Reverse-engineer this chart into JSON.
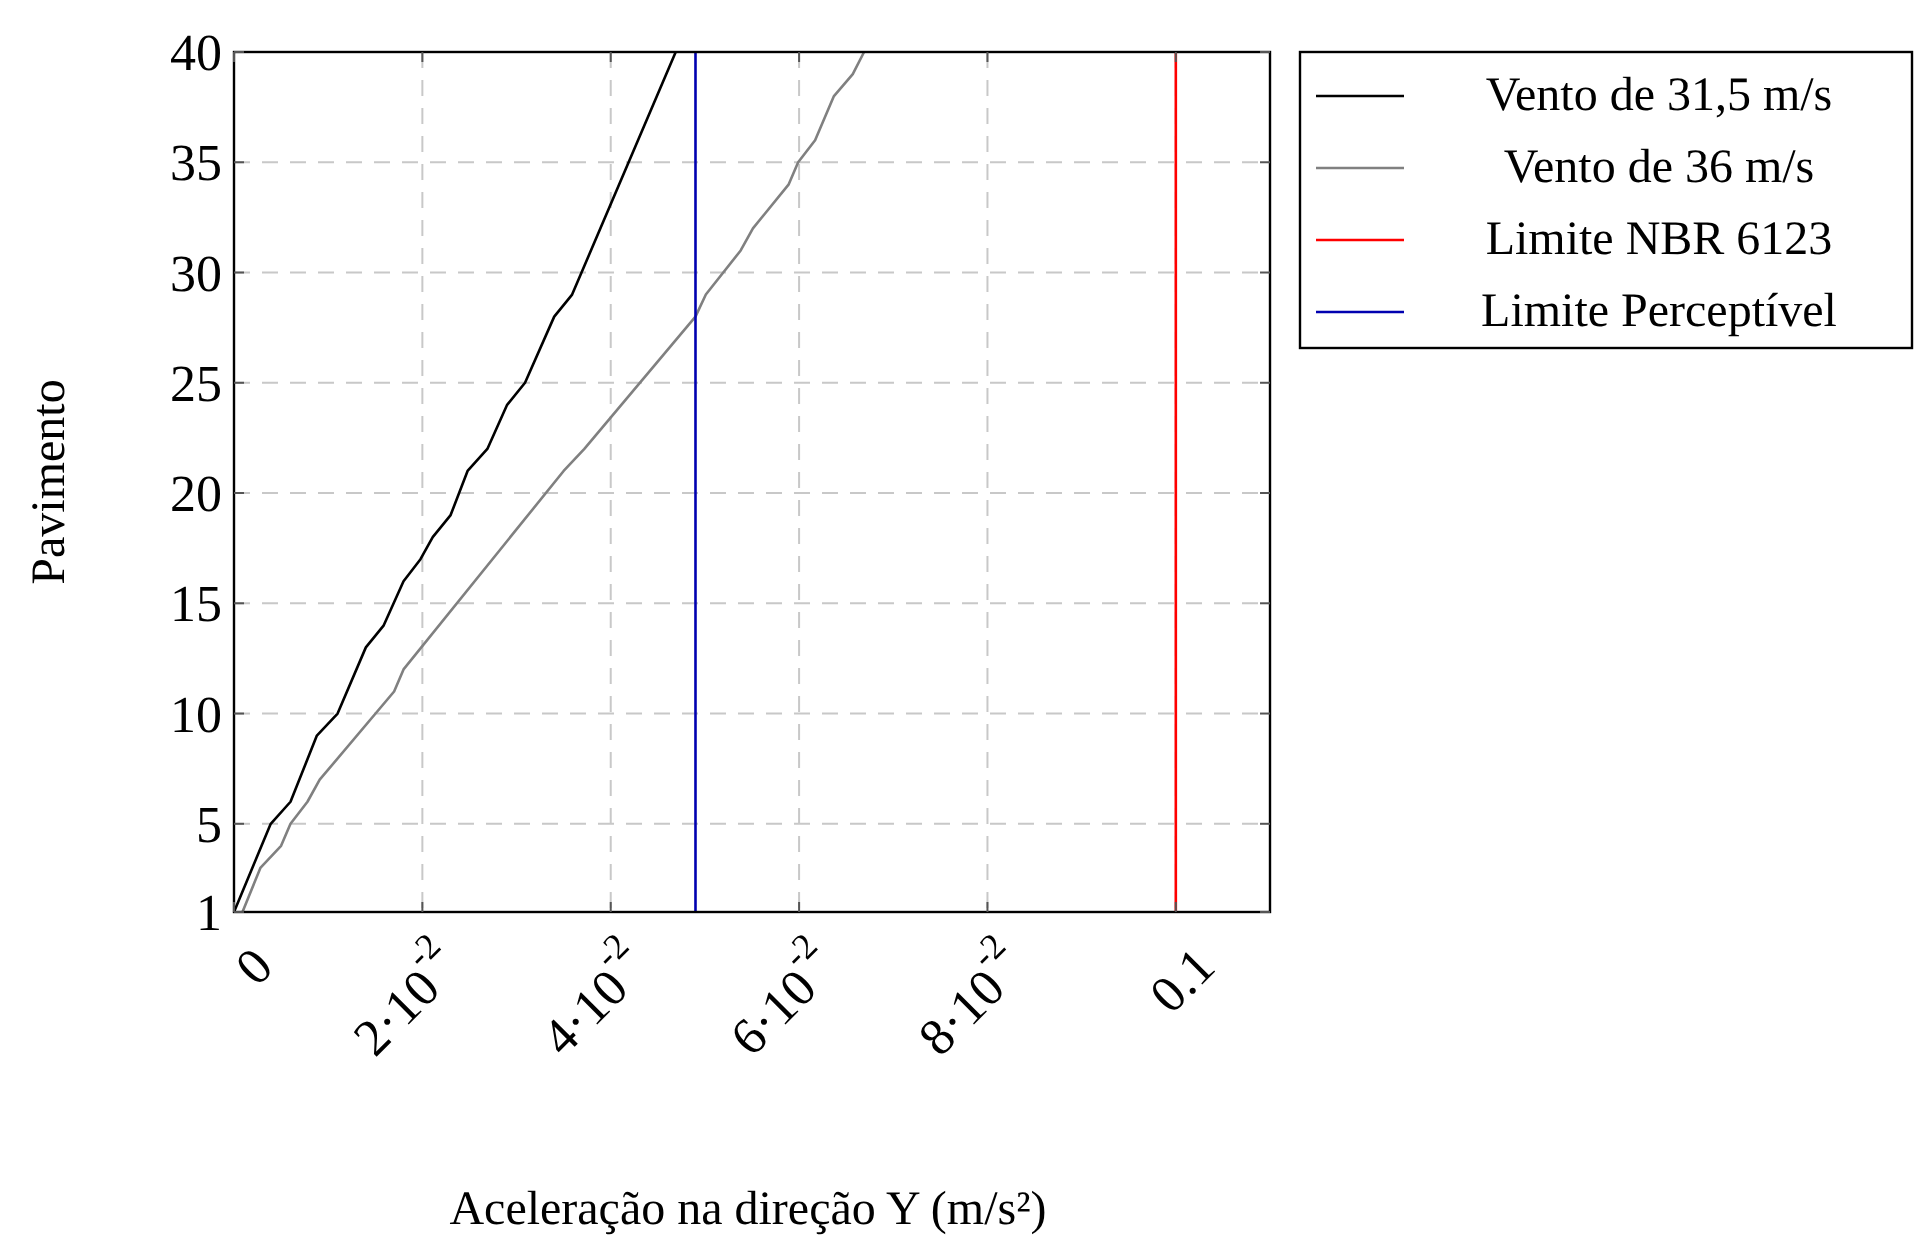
{
  "chart_data": {
    "type": "line",
    "xlabel": "Aceleração na direção Y (m/s²)",
    "ylabel": "Pavimento",
    "xlim": [
      0,
      0.11
    ],
    "ylim": [
      1,
      40
    ],
    "xticks": [
      0,
      {
        "value": 0.02,
        "label": "2·10$^{-2}$"
      },
      {
        "value": 0.04,
        "label": "4·10$^{-2}$"
      },
      {
        "value": 0.06,
        "label": "6·10$^{-2}$"
      },
      {
        "value": 0.08,
        "label": "8·10$^{-2}$"
      },
      0.1
    ],
    "yticks": [
      1,
      5,
      10,
      15,
      20,
      25,
      30,
      35,
      40
    ],
    "grid": true,
    "legend": "top right",
    "line_style": "solid",
    "marker": "none",
    "series": [
      {
        "name": "Vento de 31,5 m/s",
        "color": "#000000",
        "x": [
          0,
          0.0039,
          0.006,
          0.0088,
          0.011,
          0.014,
          0.0159,
          0.018,
          0.0198,
          0.0211,
          0.023,
          0.0248,
          0.0269,
          0.029,
          0.0309,
          0.034,
          0.0359,
          0.0469
        ],
        "values": [
          1,
          5,
          6,
          9,
          10,
          13,
          14,
          16,
          17,
          18,
          19,
          21,
          22,
          24,
          25,
          28,
          29,
          40
        ]
      },
      {
        "name": "Vento de 36 m/s",
        "color": "#808080",
        "x": [
          0.0009,
          0.0028,
          0.005,
          0.006,
          0.0078,
          0.0091,
          0.017,
          0.018,
          0.035,
          0.0372,
          0.049,
          0.0501,
          0.0538,
          0.0551,
          0.0589,
          0.0599,
          0.0617,
          0.0637,
          0.0657,
          0.0669
        ],
        "values": [
          1,
          3,
          4,
          5,
          6,
          7,
          11,
          12,
          21,
          22,
          28,
          29,
          31,
          32,
          34,
          35,
          36,
          38,
          39,
          40
        ]
      },
      {
        "name": "Limite NBR 6123",
        "color": "#ff0000",
        "x": [
          0.1,
          0.1
        ],
        "values": [
          1,
          40
        ]
      },
      {
        "name": "Limite Perceptível",
        "color": "#0000b0",
        "x": [
          0.049,
          0.049
        ],
        "values": [
          1,
          40
        ]
      }
    ]
  }
}
